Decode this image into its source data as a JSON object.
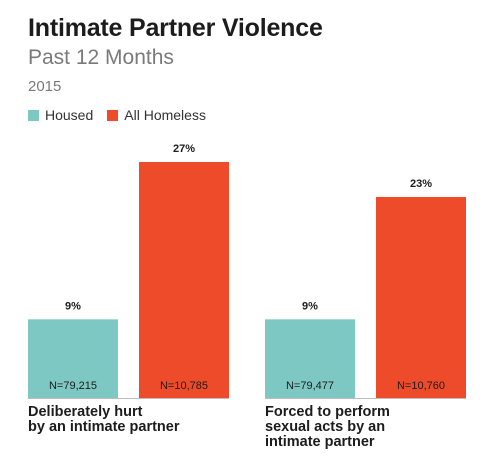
{
  "header": {
    "title": "Intimate Partner Violence",
    "subtitle": "Past 12 Months",
    "year": "2015"
  },
  "legend": {
    "items": [
      {
        "label": "Housed",
        "color": "#7ec8c4"
      },
      {
        "label": "All Homeless",
        "color": "#ee4b2b"
      }
    ]
  },
  "chart_data": {
    "type": "bar",
    "categories": [
      "Deliberately hurt\nby an intimate partner",
      "Forced to perform\nsexual acts by an\nintimate partner"
    ],
    "series": [
      {
        "name": "Housed",
        "color": "#7ec8c4",
        "values": [
          9,
          9
        ],
        "labels": [
          "9%",
          "9%"
        ],
        "n": [
          "N=79,215",
          "N=79,477"
        ]
      },
      {
        "name": "All Homeless",
        "color": "#ee4b2b",
        "values": [
          27,
          23
        ],
        "labels": [
          "27%",
          "23%"
        ],
        "n": [
          "N=10,785",
          "N=10,760"
        ]
      }
    ],
    "ylim": [
      0,
      27
    ],
    "grid": false,
    "legend_position": "top-left"
  }
}
